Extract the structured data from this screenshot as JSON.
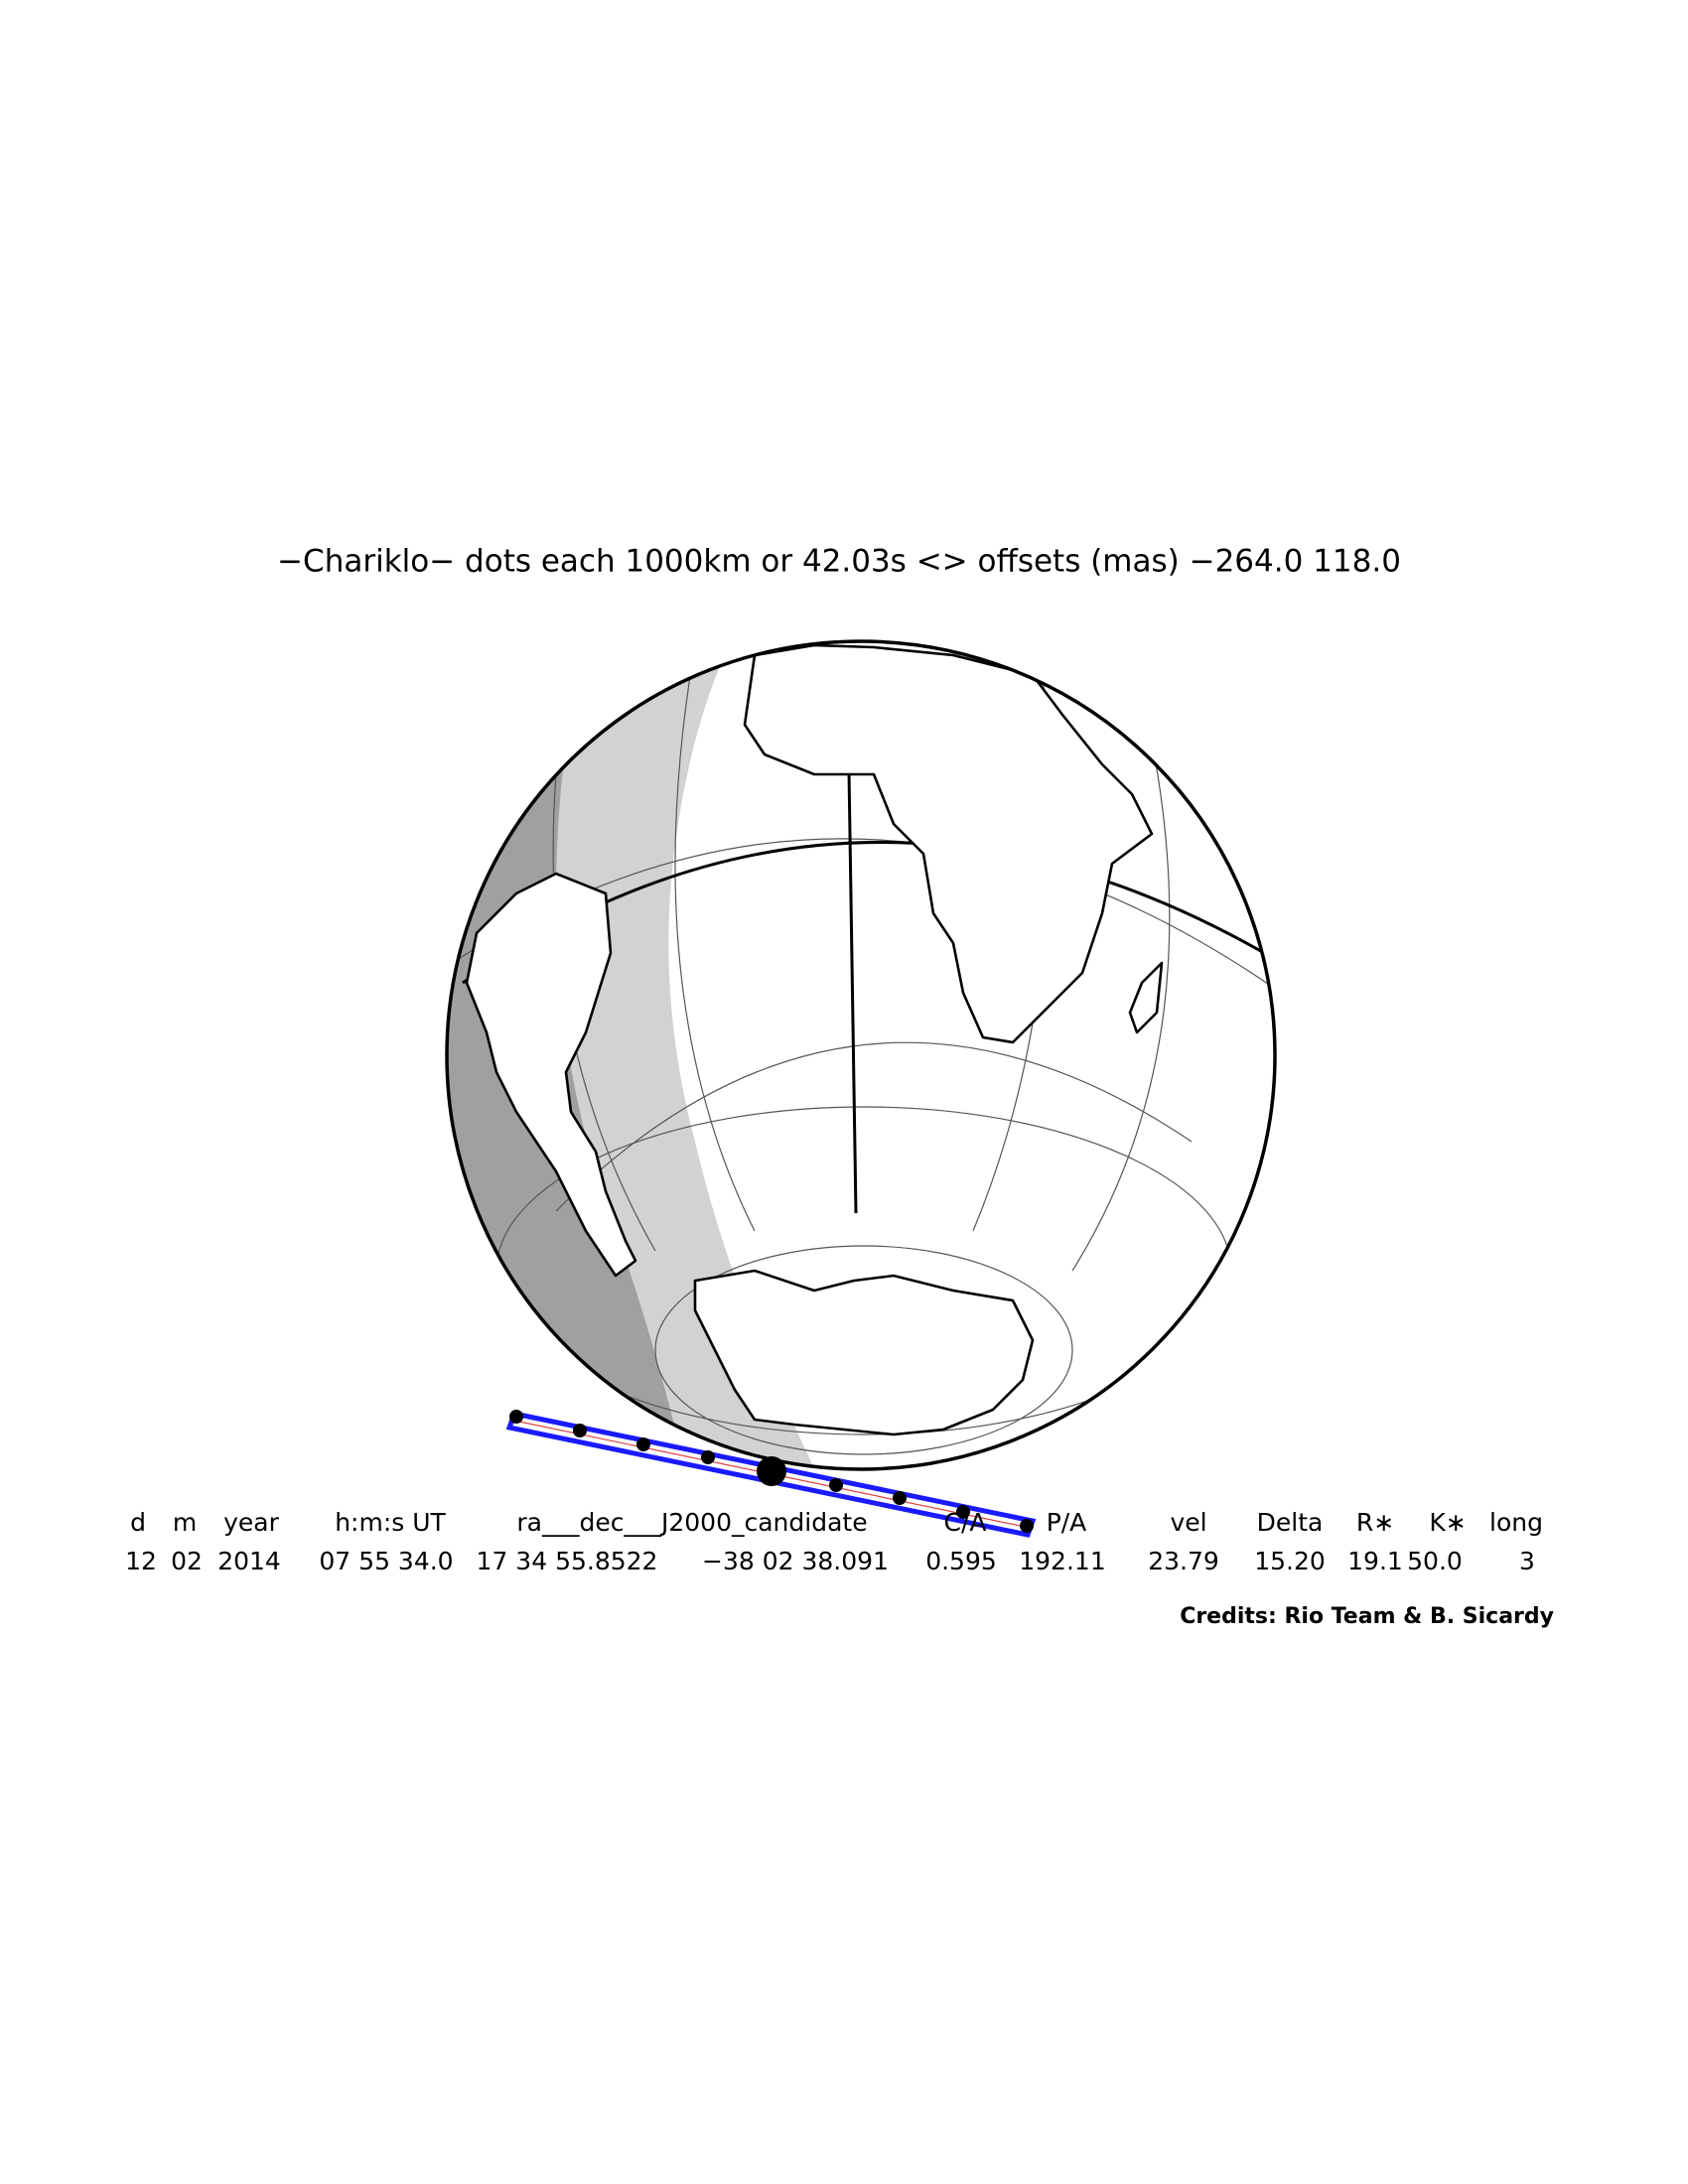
{
  "title": "−Chariklo− dots each 1000km or 42.03s <> offsets (mas) −264.0  118.0",
  "table": {
    "headers": [
      "d",
      "m",
      "year",
      "h:m:s UT",
      "ra___dec___J2000_candidate",
      "C/A",
      "P/A",
      "vel",
      "Delta",
      "R∗",
      "K∗",
      "long"
    ],
    "rows": [
      [
        "12",
        "02",
        "2014",
        "07 55 34.0",
        "17 34 55.8522",
        "−38 02 38.091",
        "0.595",
        "192.11",
        "23.79",
        "15.20",
        "19.1",
        "50.0",
        "3"
      ]
    ]
  },
  "credits": "Credits: Rio Team & B. Sicardy"
}
